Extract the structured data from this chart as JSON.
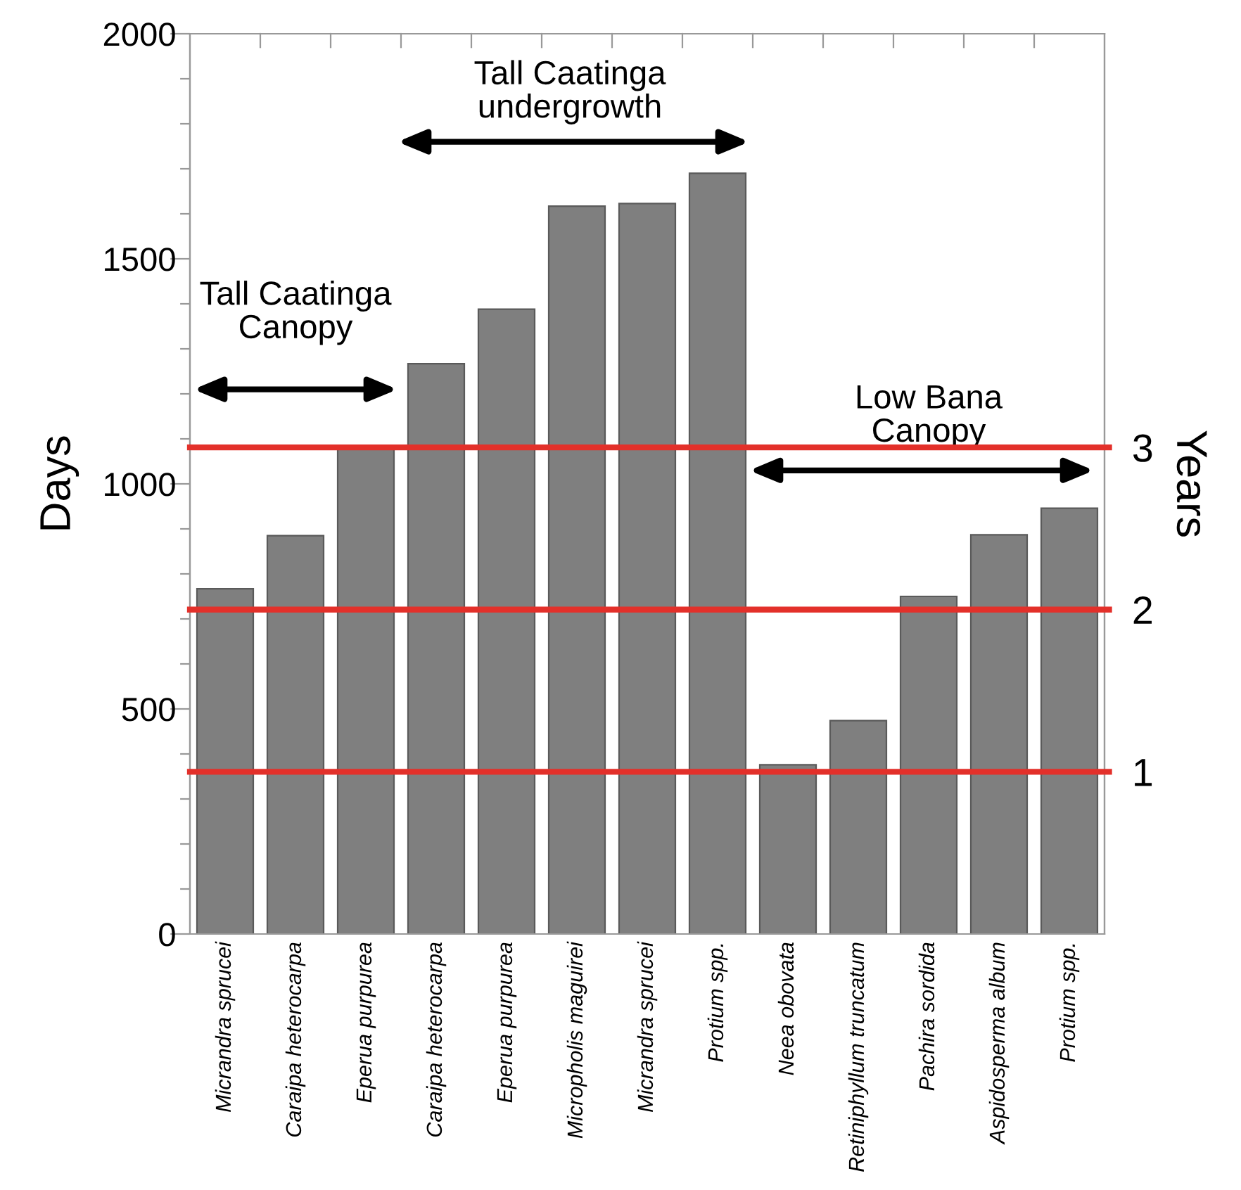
{
  "chart_data": {
    "type": "bar",
    "categories": [
      "Micrandra sprucei",
      "Caraipa heterocarpa",
      "Eperua purpurea",
      "Caraipa heterocarpa",
      "Eperua purpurea",
      "Micropholis maguirei",
      "Micrandra sprucei",
      "Protium spp.",
      "Neea obovata",
      "Retiniphyllum truncatum",
      "Pachira sordida",
      "Aspidosperma album",
      "Protium spp."
    ],
    "values": [
      767,
      885,
      1080,
      1267,
      1388,
      1617,
      1623,
      1690,
      376,
      474,
      750,
      887,
      946
    ],
    "color": "#7f7f7f",
    "ylabel": "Days",
    "y2label": "Years",
    "ylim": [
      0,
      2000
    ],
    "yticks": [
      0,
      {
        "value": 100,
        "label": null
      },
      {
        "value": 200,
        "label": null
      },
      {
        "value": 300,
        "label": null
      },
      {
        "value": 400,
        "label": null
      },
      500,
      {
        "value": 600,
        "label": null
      },
      {
        "value": 700,
        "label": null
      },
      {
        "value": 800,
        "label": null
      },
      {
        "value": 900,
        "label": null
      },
      1000,
      {
        "value": 1100,
        "label": null
      },
      {
        "value": 1200,
        "label": null
      },
      {
        "value": 1300,
        "label": null
      },
      {
        "value": 1400,
        "label": null
      },
      1500,
      {
        "value": 1600,
        "label": null
      },
      {
        "value": 1700,
        "label": null
      },
      {
        "value": 1800,
        "label": null
      },
      {
        "value": 1900,
        "label": null
      },
      2000
    ],
    "y2lim": [
      0,
      5.55
    ],
    "y2ticks": [
      1,
      2,
      3
    ],
    "ref_lines": [
      {
        "axis": "y2",
        "value": 1,
        "color": "#e3302a"
      },
      {
        "axis": "y2",
        "value": 2,
        "color": "#e3302a"
      },
      {
        "axis": "y2",
        "value": 3,
        "color": "#e3302a"
      }
    ],
    "annotations": [
      "Tall Caatinga\nCanopy",
      "Tall Caatinga\nundergrowth",
      "Low Bana\nCanopy"
    ],
    "grid": false,
    "legend": false
  }
}
